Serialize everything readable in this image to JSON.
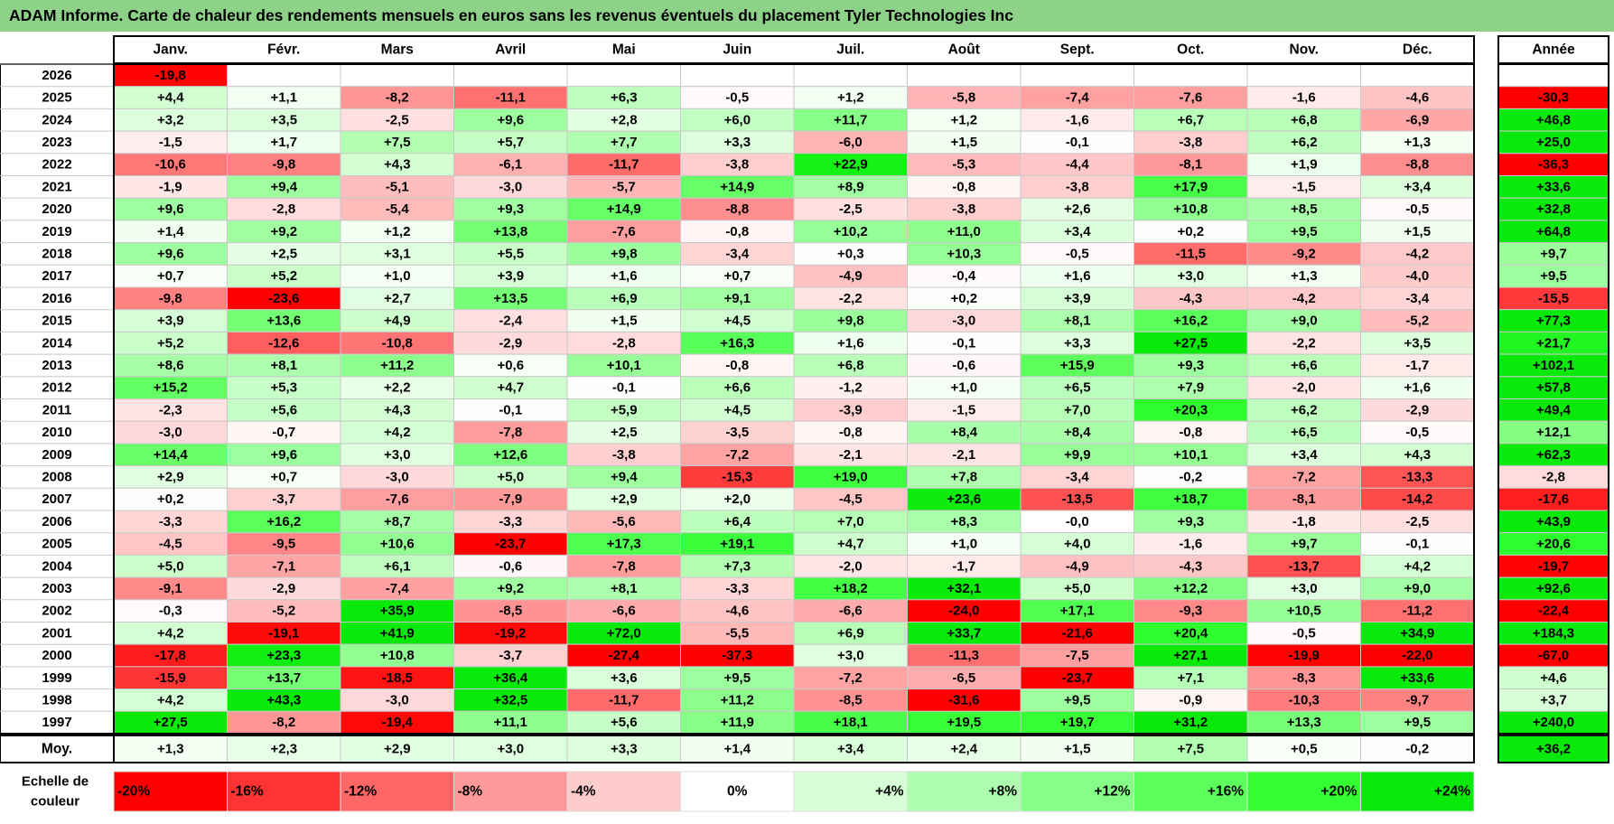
{
  "title": "ADAM Informe. Carte de chaleur des rendements mensuels en euros sans les revenus éventuels du placement Tyler Technologies Inc",
  "chart_data": {
    "type": "heatmap",
    "months": [
      "Janv.",
      "Févr.",
      "Mars",
      "Avril",
      "Mai",
      "Juin",
      "Juil.",
      "Août",
      "Sept.",
      "Oct.",
      "Nov.",
      "Déc."
    ],
    "year_header": "Année",
    "avg_label": "Moy.",
    "scale_label": [
      "Echelle de",
      "couleur"
    ],
    "rows": [
      {
        "year": "2026",
        "values": [
          "-19,8",
          null,
          null,
          null,
          null,
          null,
          null,
          null,
          null,
          null,
          null,
          null
        ],
        "total": null
      },
      {
        "year": "2025",
        "values": [
          "+4,4",
          "+1,1",
          "-8,2",
          "-11,1",
          "+6,3",
          "-0,5",
          "+1,2",
          "-5,8",
          "-7,4",
          "-7,6",
          "-1,6",
          "-4,6"
        ],
        "total": "-30,3"
      },
      {
        "year": "2024",
        "values": [
          "+3,2",
          "+3,5",
          "-2,5",
          "+9,6",
          "+2,8",
          "+6,0",
          "+11,7",
          "+1,2",
          "-1,6",
          "+6,7",
          "+6,8",
          "-6,9"
        ],
        "total": "+46,8"
      },
      {
        "year": "2023",
        "values": [
          "-1,5",
          "+1,7",
          "+7,5",
          "+5,7",
          "+7,7",
          "+3,3",
          "-6,0",
          "+1,5",
          "-0,1",
          "-3,8",
          "+6,2",
          "+1,3"
        ],
        "total": "+25,0"
      },
      {
        "year": "2022",
        "values": [
          "-10,6",
          "-9,8",
          "+4,3",
          "-6,1",
          "-11,7",
          "-3,8",
          "+22,9",
          "-5,3",
          "-4,4",
          "-8,1",
          "+1,9",
          "-8,8"
        ],
        "total": "-36,3"
      },
      {
        "year": "2021",
        "values": [
          "-1,9",
          "+9,4",
          "-5,1",
          "-3,0",
          "-5,7",
          "+14,9",
          "+8,9",
          "-0,8",
          "-3,8",
          "+17,9",
          "-1,5",
          "+3,4"
        ],
        "total": "+33,6"
      },
      {
        "year": "2020",
        "values": [
          "+9,6",
          "-2,8",
          "-5,4",
          "+9,3",
          "+14,9",
          "-8,8",
          "-2,5",
          "-3,8",
          "+2,6",
          "+10,8",
          "+8,5",
          "-0,5"
        ],
        "total": "+32,8"
      },
      {
        "year": "2019",
        "values": [
          "+1,4",
          "+9,2",
          "+1,2",
          "+13,8",
          "-7,6",
          "-0,8",
          "+10,2",
          "+11,0",
          "+3,4",
          "+0,2",
          "+9,5",
          "+1,5"
        ],
        "total": "+64,8"
      },
      {
        "year": "2018",
        "values": [
          "+9,6",
          "+2,5",
          "+3,1",
          "+5,5",
          "+9,8",
          "-3,4",
          "+0,3",
          "+10,3",
          "-0,5",
          "-11,5",
          "-9,2",
          "-4,2"
        ],
        "total": "+9,7"
      },
      {
        "year": "2017",
        "values": [
          "+0,7",
          "+5,2",
          "+1,0",
          "+3,9",
          "+1,6",
          "+0,7",
          "-4,9",
          "-0,4",
          "+1,6",
          "+3,0",
          "+1,3",
          "-4,0"
        ],
        "total": "+9,5"
      },
      {
        "year": "2016",
        "values": [
          "-9,8",
          "-23,6",
          "+2,7",
          "+13,5",
          "+6,9",
          "+9,1",
          "-2,2",
          "+0,2",
          "+3,9",
          "-4,3",
          "-4,2",
          "-3,4"
        ],
        "total": "-15,5"
      },
      {
        "year": "2015",
        "values": [
          "+3,9",
          "+13,6",
          "+4,9",
          "-2,4",
          "+1,5",
          "+4,5",
          "+9,8",
          "-3,0",
          "+8,1",
          "+16,2",
          "+9,0",
          "-5,2"
        ],
        "total": "+77,3"
      },
      {
        "year": "2014",
        "values": [
          "+5,2",
          "-12,6",
          "-10,8",
          "-2,9",
          "-2,8",
          "+16,3",
          "+1,6",
          "-0,1",
          "+3,3",
          "+27,5",
          "-2,2",
          "+3,5"
        ],
        "total": "+21,7"
      },
      {
        "year": "2013",
        "values": [
          "+8,6",
          "+8,1",
          "+11,2",
          "+0,6",
          "+10,1",
          "-0,8",
          "+6,8",
          "-0,6",
          "+15,9",
          "+9,3",
          "+6,6",
          "-1,7"
        ],
        "total": "+102,1"
      },
      {
        "year": "2012",
        "values": [
          "+15,2",
          "+5,3",
          "+2,2",
          "+4,7",
          "-0,1",
          "+6,6",
          "-1,2",
          "+1,0",
          "+6,5",
          "+7,9",
          "-2,0",
          "+1,6"
        ],
        "total": "+57,8"
      },
      {
        "year": "2011",
        "values": [
          "-2,3",
          "+5,6",
          "+4,3",
          "-0,1",
          "+5,9",
          "+4,5",
          "-3,9",
          "-1,5",
          "+7,0",
          "+20,3",
          "+6,2",
          "-2,9"
        ],
        "total": "+49,4"
      },
      {
        "year": "2010",
        "values": [
          "-3,0",
          "-0,7",
          "+4,2",
          "-7,8",
          "+2,5",
          "-3,5",
          "-0,8",
          "+8,4",
          "+8,4",
          "-0,8",
          "+6,5",
          "-0,5"
        ],
        "total": "+12,1"
      },
      {
        "year": "2009",
        "values": [
          "+14,4",
          "+9,6",
          "+3,0",
          "+12,6",
          "-3,8",
          "-7,2",
          "-2,1",
          "-2,1",
          "+9,9",
          "+10,1",
          "+3,4",
          "+4,3"
        ],
        "total": "+62,3"
      },
      {
        "year": "2008",
        "values": [
          "+2,9",
          "+0,7",
          "-3,0",
          "+5,0",
          "+9,4",
          "-15,3",
          "+19,0",
          "+7,8",
          "-3,4",
          "-0,2",
          "-7,2",
          "-13,3"
        ],
        "total": "-2,8"
      },
      {
        "year": "2007",
        "values": [
          "+0,2",
          "-3,7",
          "-7,6",
          "-7,9",
          "+2,9",
          "+2,0",
          "-4,5",
          "+23,6",
          "-13,5",
          "+18,7",
          "-8,1",
          "-14,2"
        ],
        "total": "-17,6"
      },
      {
        "year": "2006",
        "values": [
          "-3,3",
          "+16,2",
          "+8,7",
          "-3,3",
          "-5,6",
          "+6,4",
          "+7,0",
          "+8,3",
          "-0,0",
          "+9,3",
          "-1,8",
          "-2,5"
        ],
        "total": "+43,9"
      },
      {
        "year": "2005",
        "values": [
          "-4,5",
          "-9,5",
          "+10,6",
          "-23,7",
          "+17,3",
          "+19,1",
          "+4,7",
          "+1,0",
          "+4,0",
          "-1,6",
          "+9,7",
          "-0,1"
        ],
        "total": "+20,6"
      },
      {
        "year": "2004",
        "values": [
          "+5,0",
          "-7,1",
          "+6,1",
          "-0,6",
          "-7,8",
          "+7,3",
          "-2,0",
          "-1,7",
          "-4,9",
          "-4,3",
          "-13,7",
          "+4,2"
        ],
        "total": "-19,7"
      },
      {
        "year": "2003",
        "values": [
          "-9,1",
          "-2,9",
          "-7,4",
          "+9,2",
          "+8,1",
          "-3,3",
          "+18,2",
          "+32,1",
          "+5,0",
          "+12,2",
          "+3,0",
          "+9,0"
        ],
        "total": "+92,6"
      },
      {
        "year": "2002",
        "values": [
          "-0,3",
          "-5,2",
          "+35,9",
          "-8,5",
          "-6,6",
          "-4,6",
          "-6,6",
          "-24,0",
          "+17,1",
          "-9,3",
          "+10,5",
          "-11,2"
        ],
        "total": "-22,4"
      },
      {
        "year": "2001",
        "values": [
          "+4,2",
          "-19,1",
          "+41,9",
          "-19,2",
          "+72,0",
          "-5,5",
          "+6,9",
          "+33,7",
          "-21,6",
          "+20,4",
          "-0,5",
          "+34,9"
        ],
        "total": "+184,3"
      },
      {
        "year": "2000",
        "values": [
          "-17,8",
          "+23,3",
          "+10,8",
          "-3,7",
          "-27,4",
          "-37,3",
          "+3,0",
          "-11,3",
          "-7,5",
          "+27,1",
          "-19,9",
          "-22,0"
        ],
        "total": "-67,0"
      },
      {
        "year": "1999",
        "values": [
          "-15,9",
          "+13,7",
          "-18,5",
          "+36,4",
          "+3,6",
          "+9,5",
          "-7,2",
          "-6,5",
          "-23,7",
          "+7,1",
          "-8,3",
          "+33,6"
        ],
        "total": "+4,6"
      },
      {
        "year": "1998",
        "values": [
          "+4,2",
          "+43,3",
          "-3,0",
          "+32,5",
          "-11,7",
          "+11,2",
          "-8,5",
          "-31,6",
          "+9,5",
          "-0,9",
          "-10,3",
          "-9,7"
        ],
        "total": "+3,7"
      },
      {
        "year": "1997",
        "values": [
          "+27,5",
          "-8,2",
          "-19,4",
          "+11,1",
          "+5,6",
          "+11,9",
          "+18,1",
          "+19,5",
          "+19,7",
          "+31,2",
          "+13,3",
          "+9,5"
        ],
        "total": "+240,0"
      }
    ],
    "averages": {
      "values": [
        "+1,3",
        "+2,3",
        "+2,9",
        "+3,0",
        "+3,3",
        "+1,4",
        "+3,4",
        "+2,4",
        "+1,5",
        "+7,5",
        "+0,5",
        "-0,2"
      ],
      "total": "+36,2"
    },
    "scale": [
      {
        "label": "-20%",
        "value": -20,
        "color": "#ff0000"
      },
      {
        "label": "-16%",
        "value": -16,
        "color": "#ff3333"
      },
      {
        "label": "-12%",
        "value": -12,
        "color": "#ff6666"
      },
      {
        "label": "-8%",
        "value": -8,
        "color": "#ff9999"
      },
      {
        "label": "-4%",
        "value": -4,
        "color": "#ffcccc"
      },
      {
        "label": "0%",
        "value": 0,
        "color": "#ffffff"
      },
      {
        "label": "+4%",
        "value": 4,
        "color": "#d6ffd6"
      },
      {
        "label": "+8%",
        "value": 8,
        "color": "#adffad"
      },
      {
        "label": "+12%",
        "value": 12,
        "color": "#85ff85"
      },
      {
        "label": "+16%",
        "value": 16,
        "color": "#5cff5c"
      },
      {
        "label": "+20%",
        "value": 20,
        "color": "#33ff33"
      },
      {
        "label": "+24%",
        "value": 24,
        "color": "#0aea0a"
      }
    ]
  }
}
